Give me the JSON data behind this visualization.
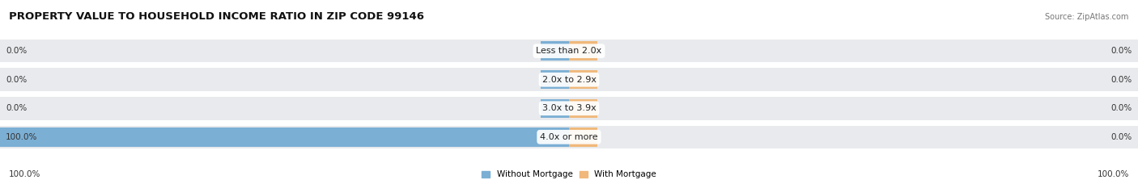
{
  "title": "PROPERTY VALUE TO HOUSEHOLD INCOME RATIO IN ZIP CODE 99146",
  "source": "Source: ZipAtlas.com",
  "categories": [
    "Less than 2.0x",
    "2.0x to 2.9x",
    "3.0x to 3.9x",
    "4.0x or more"
  ],
  "without_mortgage": [
    0.0,
    0.0,
    0.0,
    100.0
  ],
  "with_mortgage": [
    0.0,
    0.0,
    0.0,
    0.0
  ],
  "color_without": "#7bafd4",
  "color_with": "#f0b87a",
  "bar_bg_color": "#e8eaed",
  "axis_label_left": "100.0%",
  "axis_label_right": "100.0%",
  "legend_without": "Without Mortgage",
  "legend_with": "With Mortgage",
  "stub_size": 5.0,
  "figsize": [
    14.06,
    2.33
  ],
  "dpi": 100
}
